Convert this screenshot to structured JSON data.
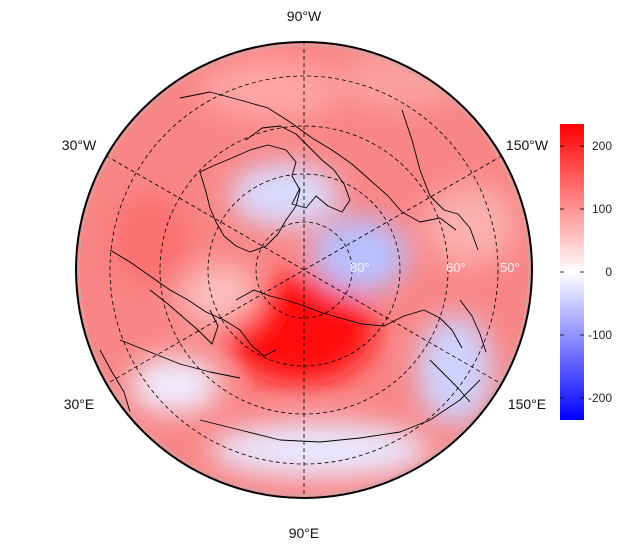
{
  "map": {
    "projection": "north polar stereographic",
    "lon_labels": [
      {
        "id": "lon-90w",
        "text": "90°W"
      },
      {
        "id": "lon-30w",
        "text": "30°W"
      },
      {
        "id": "lon-150w",
        "text": "150°W"
      },
      {
        "id": "lon-30e",
        "text": "30°E"
      },
      {
        "id": "lon-150e",
        "text": "150°E"
      },
      {
        "id": "lon-90e",
        "text": "90°E"
      }
    ],
    "lat_labels": [
      {
        "id": "lat-80",
        "text": "80°"
      },
      {
        "id": "lat-60",
        "text": "60°"
      },
      {
        "id": "lat-50",
        "text": "50°"
      }
    ],
    "field": {
      "description_colors": {
        "positive": "#ff0000",
        "zero": "#ffffff",
        "negative": "#0000ff"
      }
    }
  },
  "colorbar": {
    "range": [
      -235,
      235
    ],
    "ticks": [
      {
        "value": 200,
        "label": "200"
      },
      {
        "value": 100,
        "label": "100"
      },
      {
        "value": 0,
        "label": "0"
      },
      {
        "value": -100,
        "label": "-100"
      },
      {
        "value": -200,
        "label": "-200"
      }
    ],
    "top_color": "#ff0000",
    "mid_color": "#ffffff",
    "bottom_color": "#0000ff"
  }
}
